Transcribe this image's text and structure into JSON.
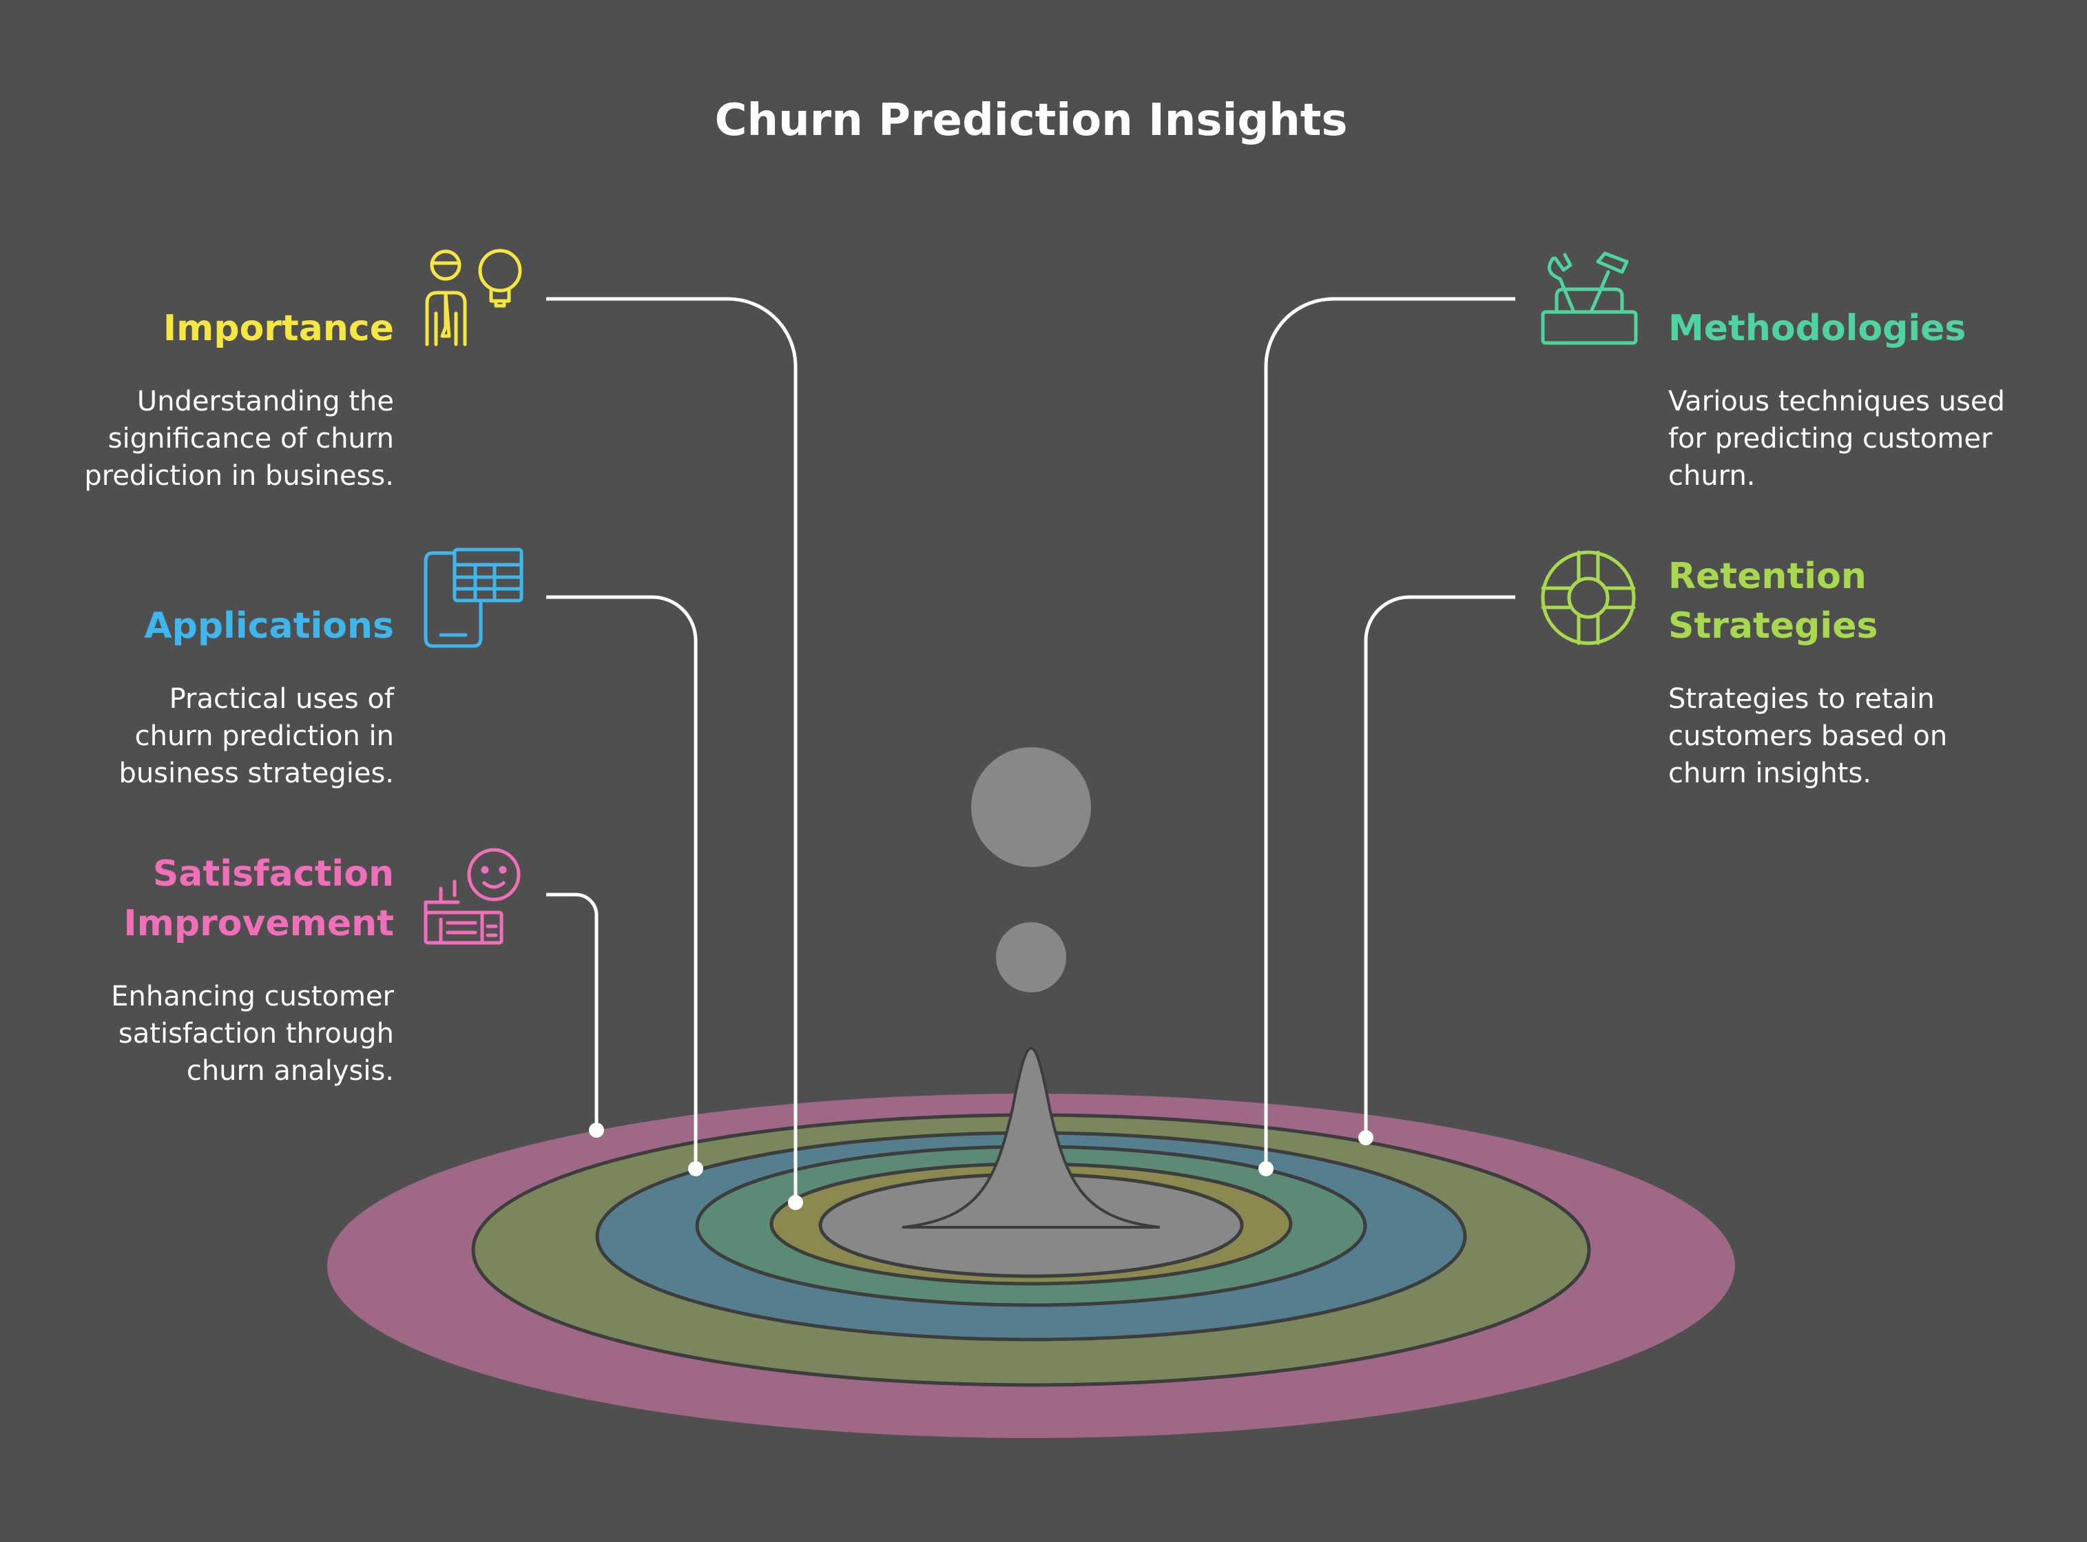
{
  "title": "Churn Prediction Insights",
  "colors": {
    "background": "#4f4f4f",
    "importance": "#f5e642",
    "applications": "#3fb6ec",
    "satisfaction": "#ef6fb8",
    "methodologies": "#4fd4a0",
    "retention": "#a8d84e",
    "ring_outer": "#a06887",
    "ring_green": "#7a865c",
    "ring_blue": "#557f8f",
    "ring_teal": "#5b8a76",
    "ring_olive": "#8b8950",
    "center": "#888888"
  },
  "items": {
    "importance": {
      "heading": "Importance",
      "lines": [
        "Understanding the",
        "significance of churn",
        "prediction in business."
      ],
      "icon": "person-lightbulb-icon"
    },
    "applications": {
      "heading": "Applications",
      "lines": [
        "Practical uses of",
        "churn prediction in",
        "business strategies."
      ],
      "icon": "phone-spreadsheet-icon"
    },
    "satisfaction": {
      "heading_lines": [
        "Satisfaction",
        "Improvement"
      ],
      "lines": [
        "Enhancing customer",
        "satisfaction through",
        "churn analysis."
      ],
      "icon": "smiley-desk-icon"
    },
    "methodologies": {
      "heading": "Methodologies",
      "lines": [
        "Various techniques used",
        "for predicting customer",
        "churn."
      ],
      "icon": "toolbox-icon"
    },
    "retention": {
      "heading_lines": [
        "Retention",
        "Strategies"
      ],
      "lines": [
        "Strategies to retain",
        "customers based on",
        "churn insights."
      ],
      "icon": "lifebuoy-icon"
    }
  }
}
